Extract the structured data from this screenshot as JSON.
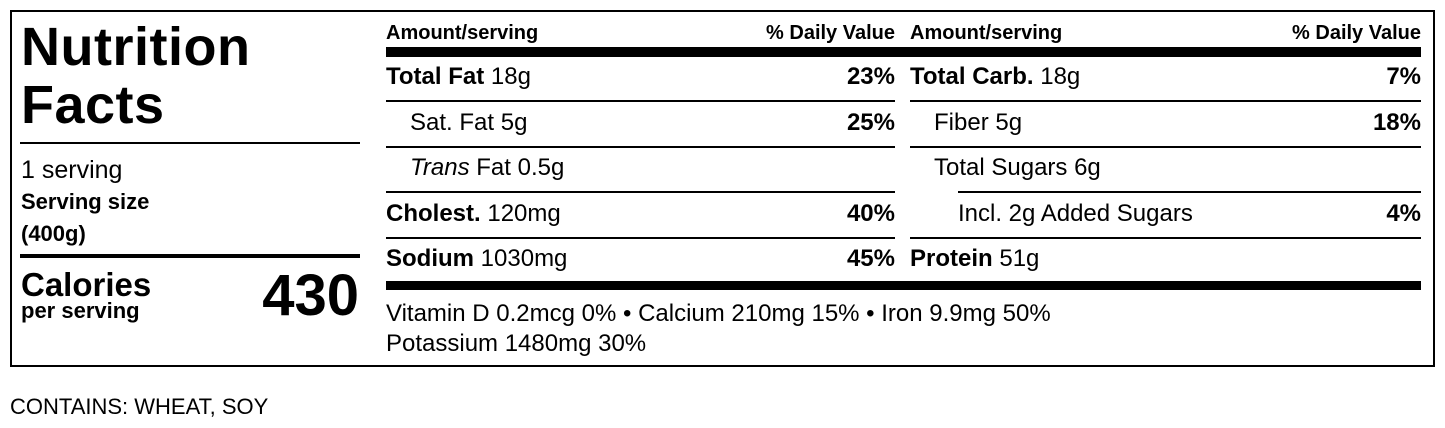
{
  "label": {
    "title": "Nutrition Facts",
    "servings": "1 serving",
    "serving_size": {
      "label": "Serving size",
      "value": "(400g)"
    },
    "calories": {
      "label": "Calories",
      "sublabel": "per serving",
      "value": "430"
    },
    "columns": [
      {
        "header": {
          "amount": "Amount/serving",
          "dv": "% Daily Value"
        },
        "rows": [
          {
            "name": "Total Fat",
            "amount": "18g",
            "dv": "23%"
          },
          {
            "name": "Sat. Fat",
            "amount": "5g",
            "dv": "25%"
          },
          {
            "name_italic": "Trans",
            "name": "Fat",
            "amount": "0.5g"
          },
          {
            "name": "Cholest.",
            "amount": "120mg",
            "dv": "40%"
          },
          {
            "name": "Sodium",
            "amount": "1030mg",
            "dv": "45%"
          }
        ]
      },
      {
        "header": {
          "amount": "Amount/serving",
          "dv": "% Daily Value"
        },
        "rows": [
          {
            "name": "Total Carb.",
            "amount": "18g",
            "dv": "7%"
          },
          {
            "name": "Fiber",
            "amount": "5g",
            "dv": "18%"
          },
          {
            "name": "Total Sugars",
            "amount": "6g"
          },
          {
            "name": "Incl. 2g Added Sugars",
            "dv": "4%"
          },
          {
            "name": "Protein",
            "amount": "51g"
          }
        ]
      }
    ],
    "vitamins": [
      [
        "Vitamin D 0.2mcg 0%",
        "Calcium 210mg 15%",
        "Iron 9.9mg 50%"
      ],
      [
        "Potassium 1480mg 30%"
      ]
    ]
  },
  "footer": "CONTAINS: WHEAT, SOY"
}
